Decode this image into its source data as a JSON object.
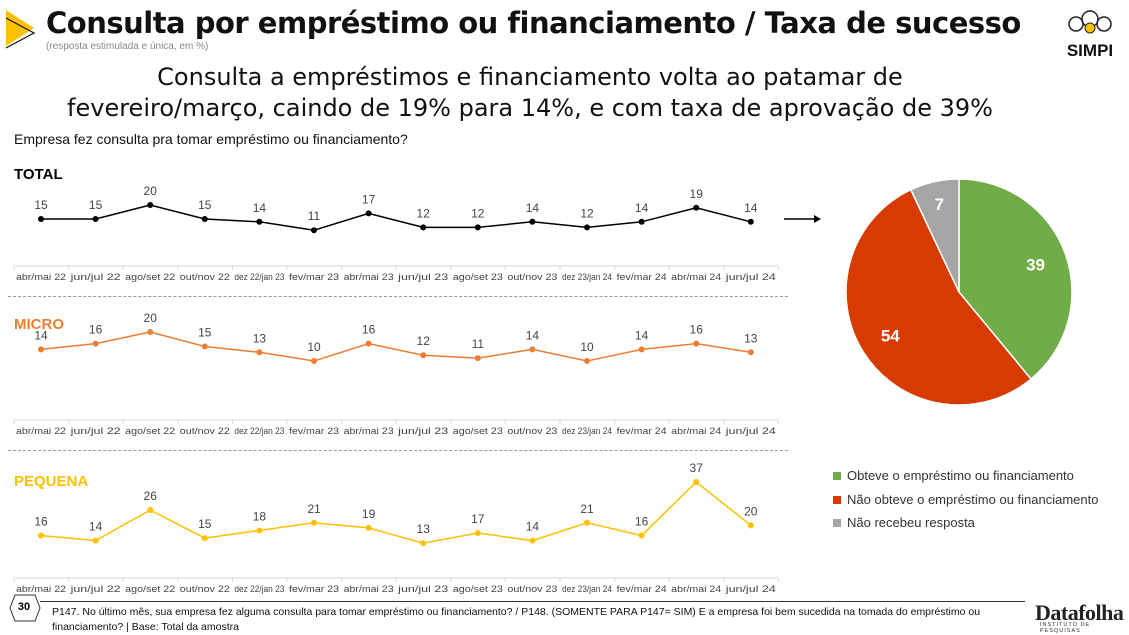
{
  "header": {
    "title": "Consulta por empréstimo ou financiamento / Taxa de sucesso",
    "subtitle": "(resposta estimulada e única, em %)",
    "logo": "SIMPI"
  },
  "headline": [
    "Consulta a empréstimos e financiamento volta ao patamar de",
    "fevereiro/março, caindo de 19% para 14%, e com taxa de aprovação de 39%"
  ],
  "question": "Empresa fez consulta pra tomar empréstimo ou financiamento?",
  "footer": {
    "page": "30",
    "text": "P147. No último mês, sua empresa fez alguma consulta para tomar empréstimo ou financiamento? / P148. (SOMENTE PARA P147= SIM) E a empresa foi bem sucedida na tomada do empréstimo ou financiamento?  |  Base: Total da amostra",
    "brand": "Datafolha",
    "brand_sub": "INSTITUTO DE PESQUISAS"
  },
  "chart_data": [
    {
      "type": "line",
      "title": "TOTAL",
      "color": "#000000",
      "categories": [
        "abr/mai 22",
        "jun/jul 22",
        "ago/set 22",
        "out/nov 22",
        "dez 22/jan 23",
        "fev/mar 23",
        "abr/mai 23",
        "jun/jul 23",
        "ago/set 23",
        "out/nov 23",
        "dez 23/jan 24",
        "fev/mar 24",
        "abr/mai 24",
        "jun/jul 24"
      ],
      "values": [
        15,
        15,
        20,
        15,
        14,
        11,
        17,
        12,
        12,
        14,
        12,
        14,
        19,
        14
      ]
    },
    {
      "type": "line",
      "title": "MICRO",
      "color": "#ED7D31",
      "categories": [
        "abr/mai 22",
        "jun/jul 22",
        "ago/set 22",
        "out/nov 22",
        "dez 22/jan 23",
        "fev/mar 23",
        "abr/mai 23",
        "jun/jul 23",
        "ago/set 23",
        "out/nov 23",
        "dez 23/jan 24",
        "fev/mar 24",
        "abr/mai 24",
        "jun/jul 24"
      ],
      "values": [
        14,
        16,
        20,
        15,
        13,
        10,
        16,
        12,
        11,
        14,
        10,
        14,
        16,
        13
      ]
    },
    {
      "type": "line",
      "title": "PEQUENA",
      "color": "#FFC000",
      "categories": [
        "abr/mai 22",
        "jun/jul 22",
        "ago/set 22",
        "out/nov 22",
        "dez 22/jan 23",
        "fev/mar 23",
        "abr/mai 23",
        "jun/jul 23",
        "ago/set 23",
        "out/nov 23",
        "dez 23/jan 24",
        "fev/mar 24",
        "abr/mai 24",
        "jun/jul 24"
      ],
      "values": [
        16,
        14,
        26,
        15,
        18,
        21,
        19,
        13,
        17,
        14,
        21,
        16,
        37,
        20
      ]
    },
    {
      "type": "pie",
      "slices": [
        {
          "label": "Obteve o empréstimo ou financiamento",
          "value": 39,
          "color": "#70AD47"
        },
        {
          "label": "Não obteve o empréstimo ou financiamento",
          "value": 54,
          "color": "#D83B01"
        },
        {
          "label": "Não recebeu resposta",
          "value": 7,
          "color": "#A5A5A5"
        }
      ],
      "legend": "bottom-right"
    }
  ]
}
